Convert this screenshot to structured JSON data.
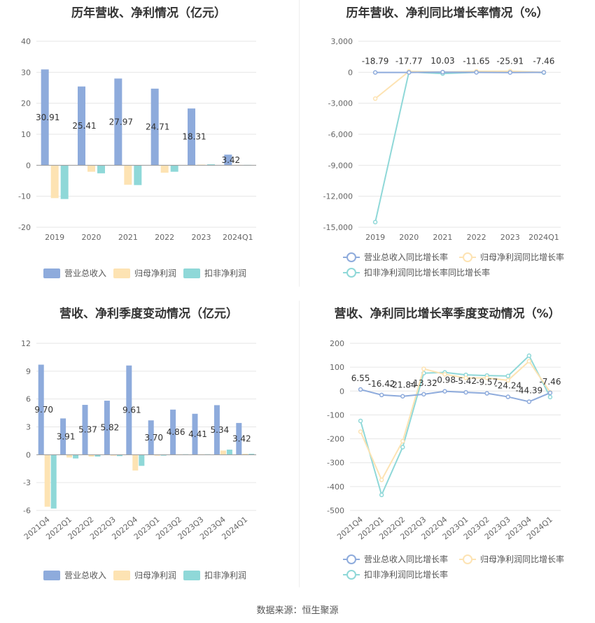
{
  "footer": "数据来源：恒生聚源",
  "colors": {
    "revenue": "#8eabdc",
    "net_profit": "#fde3b3",
    "deducted_profit": "#8fd8d8",
    "grid": "#e6e6e6",
    "axis_text": "#666666"
  },
  "chart_data": [
    {
      "id": "annual_amounts",
      "type": "bar",
      "title": "历年营收、净利情况（亿元）",
      "categories": [
        "2019",
        "2020",
        "2021",
        "2022",
        "2023",
        "2024Q1"
      ],
      "ylim": [
        -20,
        40
      ],
      "yticks": [
        -20,
        -10,
        0,
        10,
        20,
        30,
        40
      ],
      "grid": true,
      "legend_position": "bottom",
      "series": [
        {
          "name": "营业总收入",
          "values": [
            30.91,
            25.41,
            27.97,
            24.71,
            18.31,
            3.42
          ],
          "labels": [
            "30.91",
            "25.41",
            "27.97",
            "24.71",
            "18.31",
            "3.42"
          ]
        },
        {
          "name": "归母净利润",
          "values": [
            -10.6,
            -2.1,
            -6.3,
            -2.4,
            0.2,
            0.1
          ]
        },
        {
          "name": "扣非净利润",
          "values": [
            -10.9,
            -2.6,
            -6.4,
            -2.1,
            0.3,
            0.1
          ]
        }
      ]
    },
    {
      "id": "annual_growth",
      "type": "line",
      "title": "历年营收、净利同比增长率情况（%）",
      "categories": [
        "2019",
        "2020",
        "2021",
        "2022",
        "2023",
        "2024Q1"
      ],
      "ylim": [
        -15000,
        3000
      ],
      "yticks": [
        -15000,
        -12000,
        -9000,
        -6000,
        -3000,
        0,
        3000
      ],
      "ytick_labels": [
        "-15,000",
        "-12,000",
        "-9,000",
        "-6,000",
        "-3,000",
        "0",
        "3,000"
      ],
      "grid": true,
      "legend_position": "bottom",
      "series": [
        {
          "name": "营业总收入同比增长率",
          "values": [
            -18.79,
            -17.77,
            10.03,
            -11.65,
            -25.91,
            -7.46
          ],
          "labels": [
            "-18.79",
            "-17.77",
            "10.03",
            "-11.65",
            "-25.91",
            "-7.46"
          ]
        },
        {
          "name": "归母净利润同比增长率",
          "values": [
            -2550,
            80,
            20,
            90,
            100,
            0
          ]
        },
        {
          "name": "扣非净利润同比增长率同比增长率",
          "values": [
            -14500,
            30,
            -130,
            0,
            60,
            -30
          ]
        }
      ]
    },
    {
      "id": "quarterly_amounts",
      "type": "bar",
      "title": "营收、净利季度变动情况（亿元）",
      "categories": [
        "2021Q4",
        "2022Q1",
        "2022Q2",
        "2022Q3",
        "2022Q4",
        "2023Q1",
        "2023Q2",
        "2023Q3",
        "2023Q4",
        "2024Q1"
      ],
      "ylim": [
        -6,
        12
      ],
      "yticks": [
        -6,
        -3,
        0,
        3,
        6,
        9,
        12
      ],
      "grid": true,
      "legend_position": "bottom",
      "series": [
        {
          "name": "营业总收入",
          "values": [
            9.7,
            3.91,
            5.37,
            5.82,
            9.61,
            3.7,
            4.86,
            4.41,
            5.34,
            3.42
          ],
          "labels": [
            "9.70",
            "3.91",
            "5.37",
            "5.82",
            "9.61",
            "3.70",
            "4.86",
            "4.41",
            "5.34",
            "3.42"
          ]
        },
        {
          "name": "归母净利润",
          "values": [
            -5.6,
            -0.3,
            -0.2,
            -0.1,
            -1.7,
            -0.1,
            0.05,
            0.05,
            0.45,
            0.1
          ]
        },
        {
          "name": "扣非净利润",
          "values": [
            -5.8,
            -0.4,
            -0.2,
            -0.15,
            -1.2,
            -0.1,
            0.05,
            0.05,
            0.55,
            0.1
          ]
        }
      ]
    },
    {
      "id": "quarterly_growth",
      "type": "line",
      "title": "营收、净利同比增长率季度变动情况（%）",
      "categories": [
        "2021Q4",
        "2022Q1",
        "2022Q2",
        "2022Q3",
        "2022Q4",
        "2023Q1",
        "2023Q2",
        "2023Q3",
        "2023Q4",
        "2024Q1"
      ],
      "ylim": [
        -500,
        200
      ],
      "yticks": [
        -500,
        -400,
        -300,
        -200,
        -100,
        0,
        100,
        200
      ],
      "grid": true,
      "legend_position": "bottom",
      "series": [
        {
          "name": "营业总收入同比增长率",
          "values": [
            6.55,
            -16.42,
            -21.84,
            -13.32,
            -0.98,
            -5.42,
            -9.57,
            -24.24,
            -44.39,
            -7.46
          ],
          "labels": [
            "6.55",
            "-16.42",
            "-21.84",
            "-13.32",
            "-0.98",
            "-5.42",
            "-9.57",
            "-24.24",
            "-44.39",
            "-7.46"
          ]
        },
        {
          "name": "归母净利润同比增长率",
          "values": [
            -170,
            -372,
            -210,
            93,
            70,
            55,
            55,
            45,
            125,
            -5
          ]
        },
        {
          "name": "扣非净利润同比增长率",
          "values": [
            -125,
            -435,
            -235,
            75,
            78,
            68,
            65,
            63,
            148,
            -25
          ]
        }
      ]
    }
  ]
}
